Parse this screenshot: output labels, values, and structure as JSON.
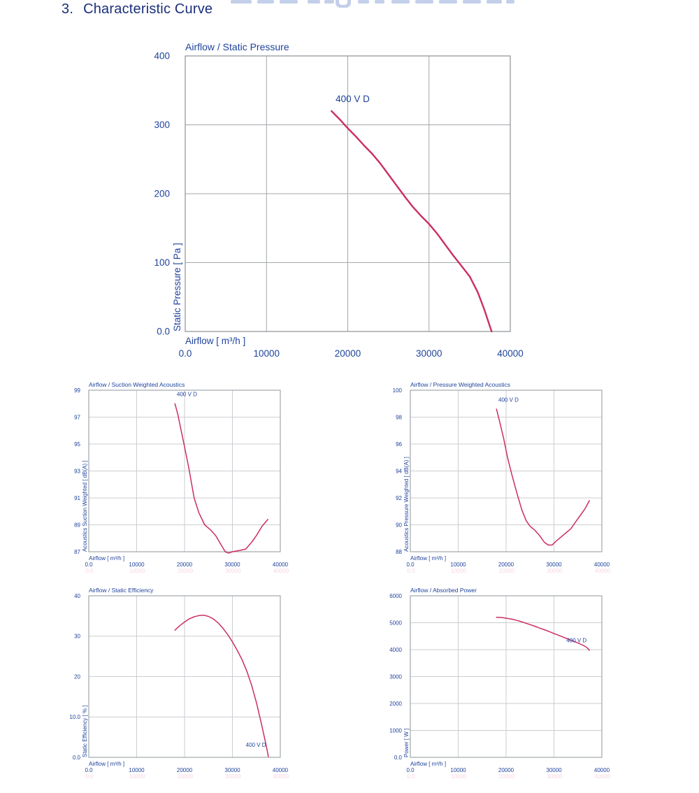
{
  "page": {
    "heading_number": "3.",
    "heading_text": "Characteristic Curve",
    "colors": {
      "curve": "#cb2e63",
      "axis_text": "#1e429b",
      "heading_text": "#1b2f7d",
      "grid_main": "#a4a7ab",
      "border_main": "#8d9196",
      "grid_small": "#cbced2",
      "border_small": "#a2a6ab",
      "ghost_tick": "#efb4c6",
      "watermark": "#c3cfe9"
    }
  },
  "chart_data": [
    {
      "id": "airflow-static-pressure",
      "type": "line",
      "title": "Airflow / Static Pressure",
      "xlabel": "Airflow [ m³/h ]",
      "ylabel": "Static Pressure [ Pa ]",
      "legend": "400 V D",
      "xlim": [
        0,
        40000
      ],
      "ylim": [
        0,
        400
      ],
      "xticks": [
        {
          "v": 0,
          "label": "0.0"
        },
        {
          "v": 10000,
          "label": "10000"
        },
        {
          "v": 20000,
          "label": "20000"
        },
        {
          "v": 30000,
          "label": "30000"
        },
        {
          "v": 40000,
          "label": "40000"
        }
      ],
      "yticks": [
        {
          "v": 400,
          "label": "400"
        },
        {
          "v": 300,
          "label": "300"
        },
        {
          "v": 200,
          "label": "200"
        },
        {
          "v": 100,
          "label": "100"
        },
        {
          "v": 0,
          "label": "0.0"
        }
      ],
      "grid_x": [
        10000,
        20000,
        30000
      ],
      "grid_y": [
        100,
        200,
        300
      ],
      "series_label": {
        "text": "400 V D",
        "x": 18500,
        "y": 333
      },
      "points": [
        [
          18000,
          320
        ],
        [
          19000,
          308
        ],
        [
          20000,
          295
        ],
        [
          21000,
          283
        ],
        [
          22000,
          270
        ],
        [
          23000,
          258
        ],
        [
          24000,
          244
        ],
        [
          25000,
          228
        ],
        [
          26000,
          212
        ],
        [
          27000,
          196
        ],
        [
          28000,
          181
        ],
        [
          29000,
          168
        ],
        [
          30000,
          156
        ],
        [
          31000,
          142
        ],
        [
          32000,
          126
        ],
        [
          33000,
          110
        ],
        [
          34000,
          95
        ],
        [
          35000,
          80
        ],
        [
          36000,
          57
        ],
        [
          36800,
          32
        ],
        [
          37700,
          0
        ]
      ]
    },
    {
      "id": "airflow-suction-weighted-acoustics",
      "type": "line",
      "title": "Airflow / Suction Weighted Acoustics",
      "xlabel": "Airflow [ m³/h ]",
      "ylabel": "Acoustics Suction Weighted [ dB(A) ]",
      "legend": "400 V D",
      "xlim": [
        0,
        40000
      ],
      "ylim": [
        87,
        99
      ],
      "xticks": [
        {
          "v": 0,
          "label": "0.0"
        },
        {
          "v": 10000,
          "label": "10000"
        },
        {
          "v": 20000,
          "label": "20000"
        },
        {
          "v": 30000,
          "label": "30000"
        },
        {
          "v": 40000,
          "label": "40000"
        }
      ],
      "yticks": [
        {
          "v": 99,
          "label": "99"
        },
        {
          "v": 97,
          "label": "97"
        },
        {
          "v": 95,
          "label": "95"
        },
        {
          "v": 93,
          "label": "93"
        },
        {
          "v": 91,
          "label": "91"
        },
        {
          "v": 89,
          "label": "89"
        },
        {
          "v": 87,
          "label": "87"
        }
      ],
      "grid_x": [
        10000,
        20000,
        30000
      ],
      "grid_y": [
        89,
        91,
        93,
        95,
        97
      ],
      "series_label": {
        "text": "400 V D",
        "x": 18400,
        "y": 98.55
      },
      "points": [
        [
          18000,
          98.0
        ],
        [
          18600,
          97.2
        ],
        [
          19300,
          96.0
        ],
        [
          20000,
          94.8
        ],
        [
          20900,
          93.2
        ],
        [
          22000,
          91.0
        ],
        [
          23000,
          89.9
        ],
        [
          24200,
          89.0
        ],
        [
          25500,
          88.6
        ],
        [
          26500,
          88.2
        ],
        [
          27500,
          87.6
        ],
        [
          28500,
          87.0
        ],
        [
          29200,
          86.9
        ],
        [
          30000,
          87.0
        ],
        [
          31500,
          87.1
        ],
        [
          32800,
          87.2
        ],
        [
          34000,
          87.7
        ],
        [
          35000,
          88.2
        ],
        [
          36200,
          88.9
        ],
        [
          37400,
          89.4
        ]
      ]
    },
    {
      "id": "airflow-pressure-weighted-acoustics",
      "type": "line",
      "title": "Airflow / Pressure Weighted Acoustics",
      "xlabel": "Airflow [ m³/h ]",
      "ylabel": "Acoustics Pressure Weighted [ dB(A) ]",
      "legend": "400 V D",
      "xlim": [
        0,
        40000
      ],
      "ylim": [
        88,
        100
      ],
      "xticks": [
        {
          "v": 0,
          "label": "0.0"
        },
        {
          "v": 10000,
          "label": "10000"
        },
        {
          "v": 20000,
          "label": "20000"
        },
        {
          "v": 30000,
          "label": "30000"
        },
        {
          "v": 40000,
          "label": "40000"
        }
      ],
      "yticks": [
        {
          "v": 100,
          "label": "100"
        },
        {
          "v": 98,
          "label": "98"
        },
        {
          "v": 96,
          "label": "96"
        },
        {
          "v": 94,
          "label": "94"
        },
        {
          "v": 92,
          "label": "92"
        },
        {
          "v": 90,
          "label": "90"
        },
        {
          "v": 88,
          "label": "88"
        }
      ],
      "grid_x": [
        10000,
        20000,
        30000
      ],
      "grid_y": [
        90,
        92,
        94,
        96,
        98
      ],
      "series_label": {
        "text": "400 V D",
        "x": 18400,
        "y": 99.15
      },
      "points": [
        [
          18000,
          98.6
        ],
        [
          18700,
          97.6
        ],
        [
          19500,
          96.4
        ],
        [
          20300,
          95.0
        ],
        [
          21300,
          93.6
        ],
        [
          22300,
          92.3
        ],
        [
          23300,
          91.1
        ],
        [
          24200,
          90.3
        ],
        [
          25000,
          89.9
        ],
        [
          26000,
          89.6
        ],
        [
          27000,
          89.2
        ],
        [
          28000,
          88.7
        ],
        [
          28800,
          88.5
        ],
        [
          29600,
          88.5
        ],
        [
          30500,
          88.8
        ],
        [
          31500,
          89.1
        ],
        [
          32500,
          89.4
        ],
        [
          33500,
          89.7
        ],
        [
          34500,
          90.2
        ],
        [
          35500,
          90.7
        ],
        [
          36500,
          91.2
        ],
        [
          37400,
          91.8
        ]
      ]
    },
    {
      "id": "airflow-static-efficiency",
      "type": "line",
      "title": "Airflow / Static Efficiency",
      "xlabel": "Airflow [ m³/h ]",
      "ylabel": "Static Efficiency [ % ]",
      "legend": "400 V D",
      "xlim": [
        0,
        40000
      ],
      "ylim": [
        0,
        40
      ],
      "xticks": [
        {
          "v": 0,
          "label": "0.0"
        },
        {
          "v": 10000,
          "label": "10000"
        },
        {
          "v": 20000,
          "label": "20000"
        },
        {
          "v": 30000,
          "label": "30000"
        },
        {
          "v": 40000,
          "label": "40000"
        }
      ],
      "yticks": [
        {
          "v": 40,
          "label": "40"
        },
        {
          "v": 30,
          "label": "30"
        },
        {
          "v": 20,
          "label": "20"
        },
        {
          "v": 10,
          "label": "10.0"
        },
        {
          "v": 0,
          "label": "0.0"
        }
      ],
      "grid_x": [
        10000,
        20000,
        30000
      ],
      "grid_y": [
        10,
        20,
        30
      ],
      "series_label": {
        "text": "400 V D",
        "x": 32800,
        "y": 2.6
      },
      "points": [
        [
          18000,
          31.5
        ],
        [
          19000,
          32.6
        ],
        [
          20000,
          33.5
        ],
        [
          21000,
          34.3
        ],
        [
          22000,
          34.8
        ],
        [
          23000,
          35.1
        ],
        [
          24000,
          35.2
        ],
        [
          25000,
          34.9
        ],
        [
          26000,
          34.3
        ],
        [
          27000,
          33.3
        ],
        [
          28000,
          32.0
        ],
        [
          29000,
          30.4
        ],
        [
          30000,
          28.6
        ],
        [
          31000,
          26.5
        ],
        [
          32000,
          24.2
        ],
        [
          33000,
          21.4
        ],
        [
          34000,
          17.9
        ],
        [
          35000,
          13.6
        ],
        [
          36000,
          8.6
        ],
        [
          37000,
          3.2
        ],
        [
          37500,
          0.2
        ]
      ]
    },
    {
      "id": "airflow-absorbed-power",
      "type": "line",
      "title": "Airflow / Absorbed Power",
      "xlabel": "Airflow [ m³/h ]",
      "ylabel": "Power [ W ]",
      "legend": "400 V D",
      "xlim": [
        0,
        40000
      ],
      "ylim": [
        0,
        6000
      ],
      "xticks": [
        {
          "v": 0,
          "label": "0.0"
        },
        {
          "v": 10000,
          "label": "10000"
        },
        {
          "v": 20000,
          "label": "20000"
        },
        {
          "v": 30000,
          "label": "30000"
        },
        {
          "v": 40000,
          "label": "40000"
        }
      ],
      "yticks": [
        {
          "v": 6000,
          "label": "6000"
        },
        {
          "v": 5000,
          "label": "5000"
        },
        {
          "v": 4000,
          "label": "4000"
        },
        {
          "v": 3000,
          "label": "3000"
        },
        {
          "v": 2000,
          "label": "2000"
        },
        {
          "v": 1000,
          "label": "1000"
        },
        {
          "v": 0,
          "label": "0.0"
        }
      ],
      "grid_x": [
        10000,
        20000,
        30000
      ],
      "grid_y": [
        1000,
        2000,
        3000,
        4000,
        5000
      ],
      "series_label": {
        "text": "400 V D",
        "x": 32600,
        "y": 4270
      },
      "points": [
        [
          18000,
          5200
        ],
        [
          19000,
          5195
        ],
        [
          20000,
          5170
        ],
        [
          21000,
          5140
        ],
        [
          22000,
          5100
        ],
        [
          23000,
          5050
        ],
        [
          24000,
          4990
        ],
        [
          25000,
          4930
        ],
        [
          26000,
          4870
        ],
        [
          27000,
          4800
        ],
        [
          28000,
          4740
        ],
        [
          29000,
          4670
        ],
        [
          30000,
          4600
        ],
        [
          31000,
          4530
        ],
        [
          32000,
          4460
        ],
        [
          33000,
          4390
        ],
        [
          34000,
          4320
        ],
        [
          35000,
          4250
        ],
        [
          36000,
          4170
        ],
        [
          36800,
          4090
        ],
        [
          37400,
          3980
        ]
      ]
    }
  ]
}
